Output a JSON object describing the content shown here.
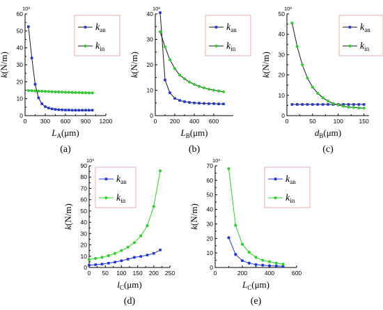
{
  "chart_data": [
    {
      "type": "line",
      "panel_label": "(a)",
      "scale_note": "10³",
      "ylabel": "k(N/m)",
      "xlabel": "L_A(μm)",
      "xlim": [
        0,
        1200
      ],
      "ylim": [
        0,
        60
      ],
      "xticks": [
        0,
        300,
        600,
        900,
        1200
      ],
      "xtick_labels": [
        "0",
        "300",
        "600",
        "900",
        "1200"
      ],
      "yticks": [
        0,
        10,
        20,
        30,
        40,
        50,
        60
      ],
      "ytick_labels": [
        "0",
        "10",
        "20",
        "30",
        "40",
        "50",
        "60"
      ],
      "legend": {
        "position": "top-right",
        "entries": [
          {
            "base": "k",
            "sub": "an"
          },
          {
            "base": "k",
            "sub": "in"
          }
        ]
      },
      "series": [
        {
          "color": "#1f35d6",
          "marker": "square",
          "x": [
            50,
            100,
            150,
            200,
            250,
            300,
            350,
            400,
            450,
            500,
            550,
            600,
            650,
            700,
            750,
            800,
            850,
            900,
            950,
            1000
          ],
          "y": [
            52.5,
            34,
            18.5,
            10.5,
            7.0,
            5.3,
            4.5,
            4.0,
            3.7,
            3.5,
            3.4,
            3.3,
            3.3,
            3.2,
            3.2,
            3.2,
            3.2,
            3.2,
            3.2,
            3.2
          ]
        },
        {
          "color": "#2fcf2f",
          "marker": "circle",
          "x": [
            50,
            100,
            150,
            200,
            250,
            300,
            350,
            400,
            450,
            500,
            550,
            600,
            650,
            700,
            750,
            800,
            850,
            900,
            950,
            1000
          ],
          "y": [
            14.8,
            14.7,
            14.6,
            14.5,
            14.4,
            14.3,
            14.2,
            14.1,
            14.0,
            14.0,
            13.9,
            13.8,
            13.8,
            13.7,
            13.6,
            13.6,
            13.5,
            13.5,
            13.4,
            13.4
          ]
        }
      ]
    },
    {
      "type": "line",
      "panel_label": "(b)",
      "scale_note": "10³",
      "ylabel": "k(N/m)",
      "xlabel": "L_B(μm)",
      "xlim": [
        0,
        800
      ],
      "ylim": [
        0,
        40
      ],
      "xticks": [
        0,
        200,
        400,
        600
      ],
      "xtick_labels": [
        "0",
        "200",
        "400",
        "600"
      ],
      "yticks": [
        0,
        10,
        20,
        30,
        40
      ],
      "ytick_labels": [
        "0",
        "10",
        "20",
        "30",
        "40"
      ],
      "legend": {
        "position": "top-right",
        "entries": [
          {
            "base": "k",
            "sub": "an"
          },
          {
            "base": "k",
            "sub": "in"
          }
        ]
      },
      "series": [
        {
          "color": "#1f35d6",
          "marker": "square",
          "x": [
            50,
            100,
            150,
            200,
            250,
            300,
            350,
            400,
            450,
            500,
            550,
            600,
            650,
            700
          ],
          "y": [
            40.5,
            14,
            9,
            6.8,
            6.0,
            5.5,
            5.2,
            5.0,
            4.9,
            4.8,
            4.7,
            4.7,
            4.6,
            4.6
          ]
        },
        {
          "color": "#2fcf2f",
          "marker": "circle",
          "x": [
            50,
            100,
            150,
            200,
            250,
            300,
            350,
            400,
            450,
            500,
            550,
            600,
            650,
            700
          ],
          "y": [
            33,
            27,
            22,
            18.5,
            16,
            14.5,
            13.2,
            12.3,
            11.5,
            10.9,
            10.4,
            10.0,
            9.7,
            9.4
          ]
        }
      ]
    },
    {
      "type": "line",
      "panel_label": "(c)",
      "scale_note": "10³",
      "ylabel": "k(N/m)",
      "xlabel": "d_B(μm)",
      "xlim": [
        0,
        160
      ],
      "ylim": [
        0,
        50
      ],
      "xticks": [
        0,
        50,
        100,
        150
      ],
      "xtick_labels": [
        "0",
        "50",
        "100",
        "150"
      ],
      "yticks": [
        0,
        10,
        20,
        30,
        40,
        50
      ],
      "ytick_labels": [
        "0",
        "10",
        "20",
        "30",
        "40",
        "50"
      ],
      "legend": {
        "position": "top-right",
        "entries": [
          {
            "base": "k",
            "sub": "an"
          },
          {
            "base": "k",
            "sub": "in"
          }
        ]
      },
      "series": [
        {
          "color": "#1f35d6",
          "marker": "square",
          "x": [
            10,
            20,
            30,
            40,
            50,
            60,
            70,
            80,
            90,
            100,
            110,
            120,
            130,
            140,
            150
          ],
          "y": [
            5.5,
            5.5,
            5.5,
            5.5,
            5.5,
            5.5,
            5.5,
            5.5,
            5.5,
            5.5,
            5.5,
            5.5,
            5.5,
            5.5,
            5.5
          ]
        },
        {
          "color": "#2fcf2f",
          "marker": "circle",
          "x": [
            10,
            20,
            30,
            40,
            50,
            60,
            70,
            80,
            90,
            100,
            110,
            120,
            130,
            140,
            150
          ],
          "y": [
            45.5,
            34,
            25,
            18.5,
            14,
            11,
            8.8,
            7.2,
            6,
            5.2,
            4.6,
            4.2,
            4.0,
            3.8,
            3.7
          ]
        }
      ]
    },
    {
      "type": "line",
      "panel_label": "(d)",
      "scale_note": "10³",
      "ylabel": "k(N/m)",
      "xlabel": "l_C(μm)",
      "xlim": [
        0,
        250
      ],
      "ylim": [
        0,
        90
      ],
      "xticks": [
        0,
        50,
        100,
        150,
        200,
        250
      ],
      "xtick_labels": [
        "0",
        "50",
        "100",
        "150",
        "200",
        "250"
      ],
      "yticks": [
        0,
        10,
        20,
        30,
        40,
        50,
        60,
        70,
        80,
        90
      ],
      "ytick_labels": [
        "0",
        "10",
        "20",
        "30",
        "40",
        "50",
        "60",
        "70",
        "80",
        "90"
      ],
      "legend": {
        "position": "top-left",
        "entries": [
          {
            "base": "k",
            "sub": "an"
          },
          {
            "base": "k",
            "sub": "in"
          }
        ]
      },
      "series": [
        {
          "color": "#1f35d6",
          "marker": "square",
          "x": [
            0,
            20,
            40,
            60,
            80,
            100,
            120,
            140,
            160,
            180,
            200,
            220
          ],
          "y": [
            2,
            2.5,
            3,
            3.8,
            4.8,
            6,
            7.4,
            9,
            9.8,
            11,
            12.5,
            15.5
          ]
        },
        {
          "color": "#2fcf2f",
          "marker": "circle",
          "x": [
            0,
            20,
            40,
            60,
            80,
            100,
            120,
            140,
            160,
            180,
            200,
            220
          ],
          "y": [
            7,
            8,
            9,
            10.5,
            12.5,
            15,
            18,
            22,
            28,
            37,
            54,
            85.5
          ]
        }
      ]
    },
    {
      "type": "line",
      "panel_label": "(e)",
      "scale_note": "10³",
      "ylabel": "k(N/m)",
      "xlabel": "L_C(μm)",
      "xlim": [
        0,
        600
      ],
      "ylim": [
        0,
        70
      ],
      "xticks": [
        0,
        200,
        400,
        600
      ],
      "xtick_labels": [
        "0",
        "200",
        "400",
        "600"
      ],
      "yticks": [
        0,
        10,
        20,
        30,
        40,
        50,
        60,
        70
      ],
      "ytick_labels": [
        "0",
        "10",
        "20",
        "30",
        "40",
        "50",
        "60",
        "70"
      ],
      "legend": {
        "position": "top-right",
        "entries": [
          {
            "base": "k",
            "sub": "an"
          },
          {
            "base": "k",
            "sub": "in"
          }
        ]
      },
      "series": [
        {
          "color": "#1f35d6",
          "marker": "circle",
          "x": [
            100,
            150,
            200,
            250,
            300,
            350,
            400,
            450,
            500
          ],
          "y": [
            20.5,
            9,
            4.7,
            3.0,
            2.0,
            1.6,
            1.2,
            1.0,
            0.8
          ]
        },
        {
          "color": "#2fcf2f",
          "marker": "circle",
          "x": [
            100,
            150,
            200,
            250,
            300,
            350,
            400,
            450,
            500
          ],
          "y": [
            68,
            29,
            16,
            10.5,
            7,
            5.0,
            4.0,
            3.0,
            2.3
          ]
        }
      ]
    }
  ]
}
